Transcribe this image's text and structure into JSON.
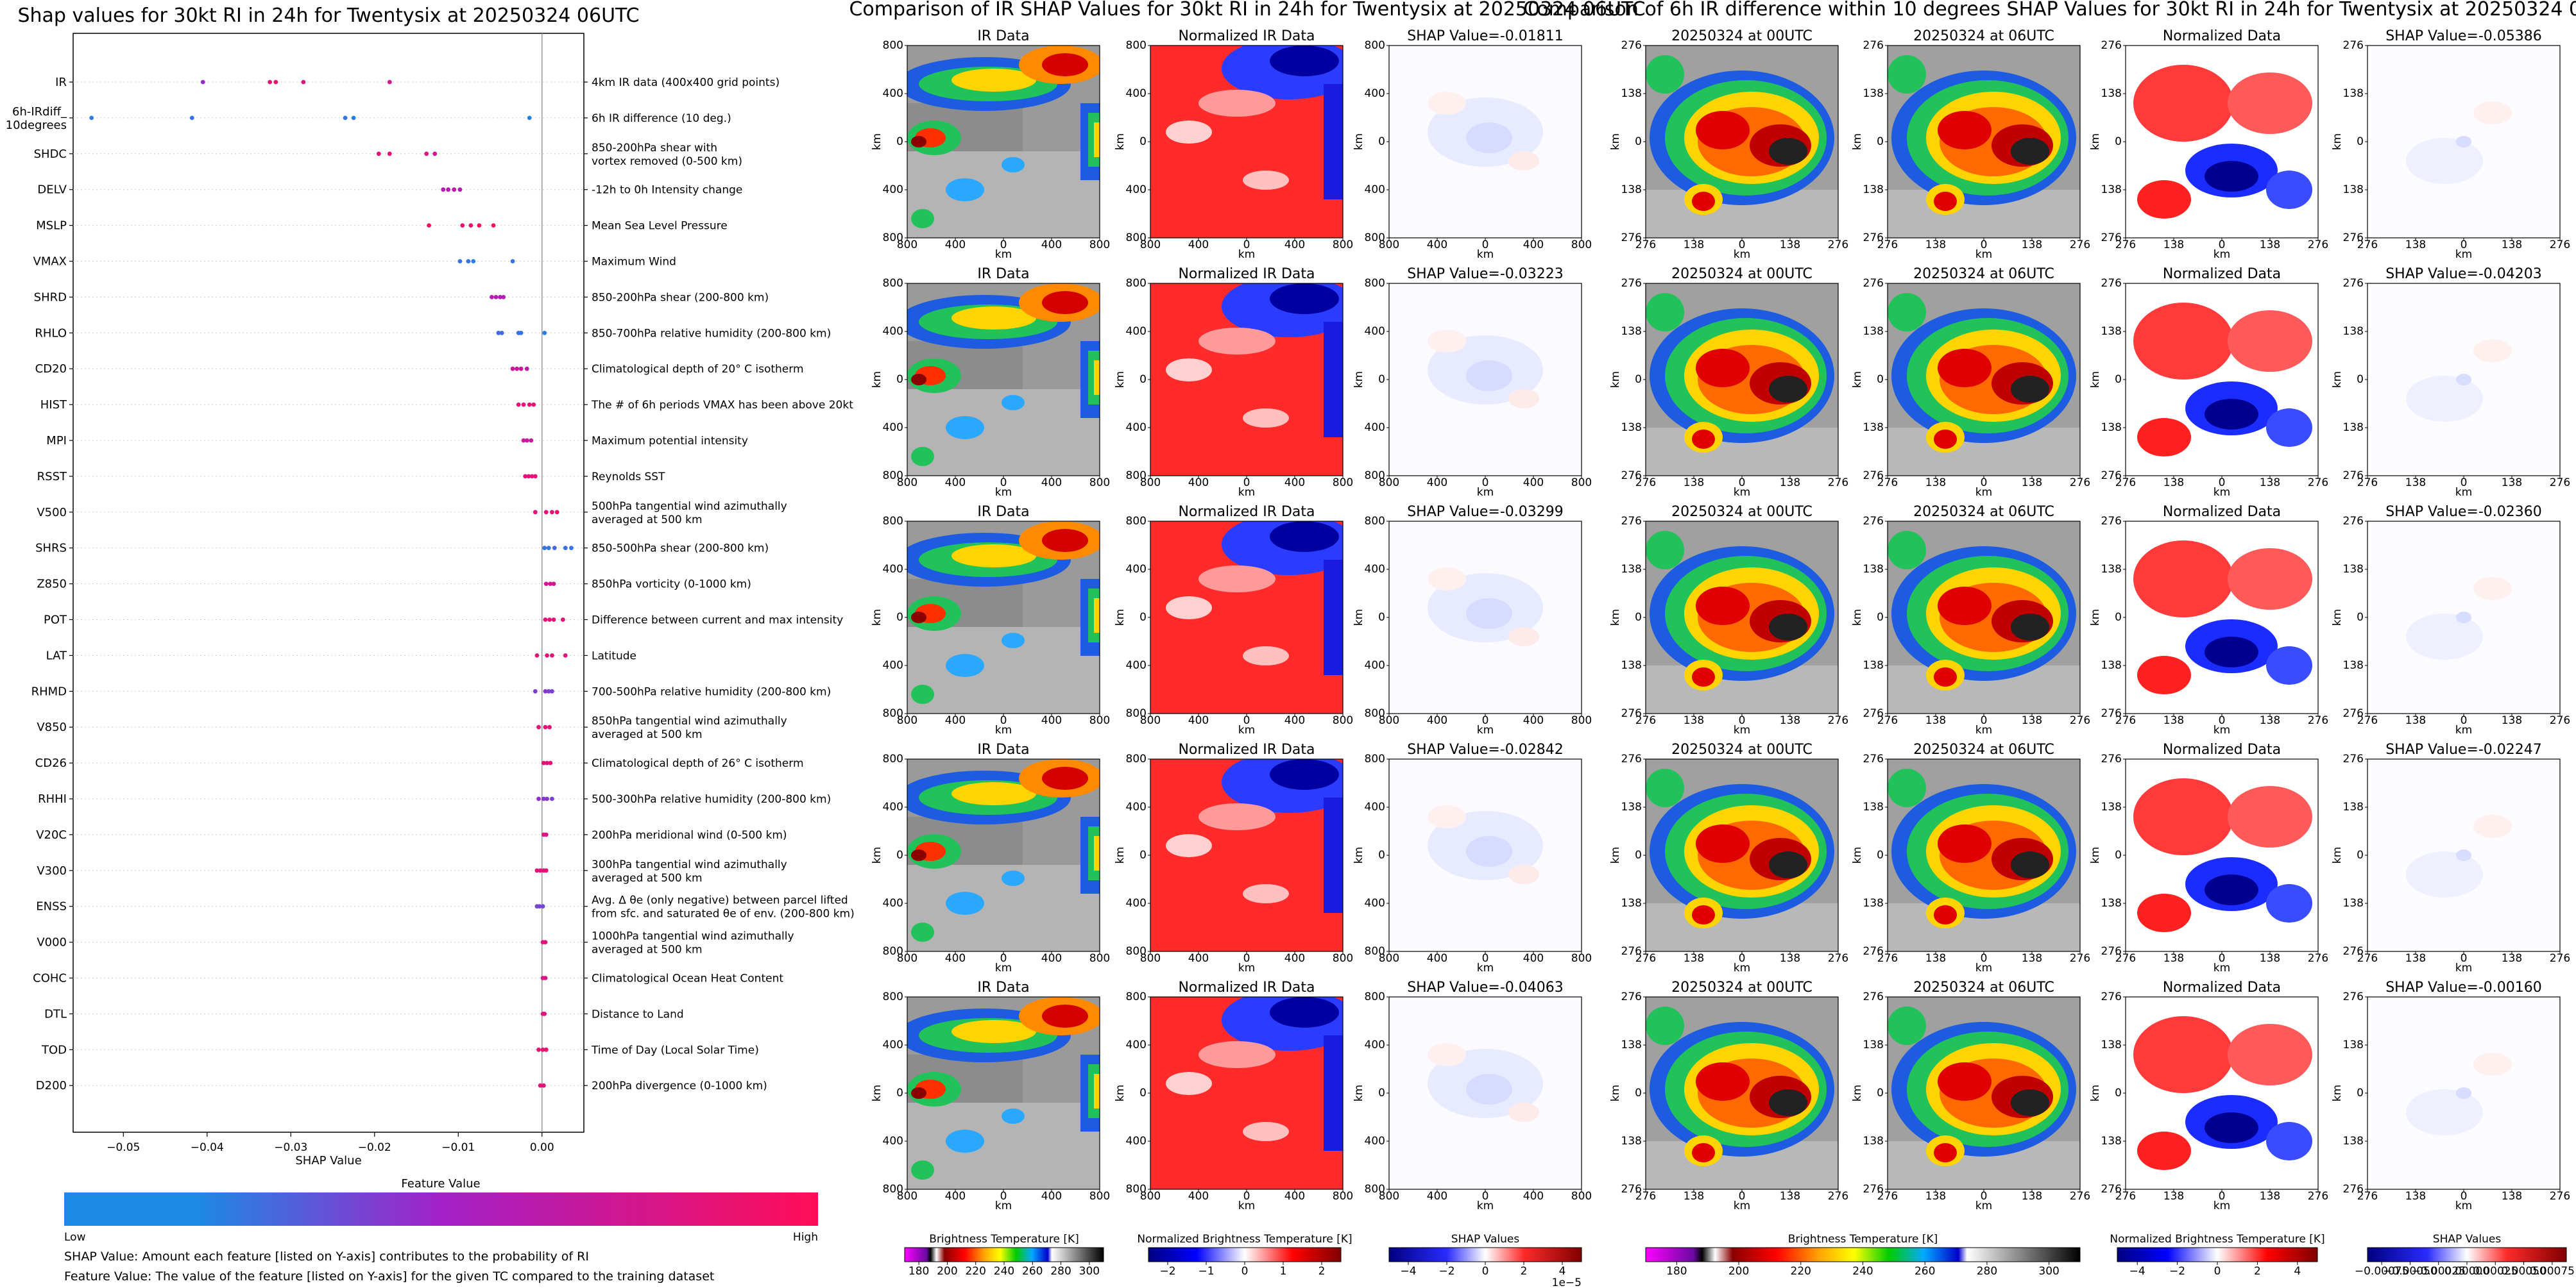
{
  "figure": {
    "panel1_title": "Shap values for 30kt RI in 24h for Twentysix at 20250324 06UTC",
    "panel2_title": "Comparison of IR SHAP Values for 30kt RI in 24h for Twentysix at 20250324 06UTC",
    "panel3_title": "Comparison of 6h IR difference within 10 degrees SHAP Values for 30kt RI in 24h for Twentysix at 20250324 06UTC"
  },
  "chart_data": [
    {
      "type": "scatter",
      "title": "Shap values for 30kt RI in 24h for Twentysix at 20250324 06UTC",
      "xlabel": "SHAP Value",
      "xlim": [
        -0.056,
        0.005
      ],
      "x_ticks": [
        "−0.05",
        "−0.04",
        "−0.03",
        "−0.02",
        "−0.01",
        "0.00"
      ],
      "x_tick_values": [
        -0.05,
        -0.04,
        -0.03,
        -0.02,
        -0.01,
        0.0
      ],
      "colorbar": {
        "label": "Feature Value",
        "low": "Low",
        "high": "High",
        "low_color": "#1e88e5",
        "high_color": "#ff0d57"
      },
      "features": [
        {
          "name": "IR",
          "desc": "4km IR data (400x400 grid points)",
          "points": [
            [
              -0.0405,
              0.45
            ],
            [
              -0.0325,
              0.85
            ],
            [
              -0.0318,
              0.9
            ],
            [
              -0.0285,
              0.8
            ],
            [
              -0.0182,
              0.75
            ]
          ]
        },
        {
          "name": "6h-IRdiff_\n10degrees",
          "desc": "6h IR difference (10 deg.)",
          "points": [
            [
              -0.0538,
              0.05
            ],
            [
              -0.0418,
              0.1
            ],
            [
              -0.0235,
              0.1
            ],
            [
              -0.0225,
              0.05
            ],
            [
              -0.0015,
              0.05
            ]
          ]
        },
        {
          "name": "SHDC",
          "desc": "850-200hPa shear with\nvortex removed (0-500 km)",
          "points": [
            [
              -0.0195,
              0.85
            ],
            [
              -0.0182,
              0.9
            ],
            [
              -0.0138,
              0.8
            ],
            [
              -0.0128,
              0.75
            ]
          ]
        },
        {
          "name": "DELV",
          "desc": "-12h to 0h Intensity change",
          "points": [
            [
              -0.0118,
              0.6
            ],
            [
              -0.0112,
              0.6
            ],
            [
              -0.0105,
              0.65
            ],
            [
              -0.0098,
              0.6
            ]
          ]
        },
        {
          "name": "MSLP",
          "desc": "Mean Sea Level Pressure",
          "points": [
            [
              -0.0135,
              0.95
            ],
            [
              -0.0095,
              0.9
            ],
            [
              -0.0085,
              0.9
            ],
            [
              -0.0075,
              0.95
            ],
            [
              -0.0058,
              0.95
            ]
          ]
        },
        {
          "name": "VMAX",
          "desc": "Maximum Wind",
          "points": [
            [
              -0.0098,
              0.1
            ],
            [
              -0.0088,
              0.1
            ],
            [
              -0.0082,
              0.05
            ],
            [
              -0.0035,
              0.1
            ]
          ]
        },
        {
          "name": "SHRD",
          "desc": "850-200hPa shear (200-800 km)",
          "points": [
            [
              -0.006,
              0.6
            ],
            [
              -0.0055,
              0.6
            ],
            [
              -0.005,
              0.6
            ],
            [
              -0.0046,
              0.6
            ]
          ]
        },
        {
          "name": "RHLO",
          "desc": "850-700hPa relative humidity (200-800 km)",
          "points": [
            [
              -0.0052,
              0.15
            ],
            [
              -0.0048,
              0.15
            ],
            [
              -0.0028,
              0.1
            ],
            [
              -0.0025,
              0.1
            ],
            [
              0.0003,
              0.05
            ]
          ]
        },
        {
          "name": "CD20",
          "desc": "Climatological depth of 20° C isotherm",
          "points": [
            [
              -0.0035,
              0.7
            ],
            [
              -0.003,
              0.7
            ],
            [
              -0.0025,
              0.7
            ],
            [
              -0.0018,
              0.65
            ]
          ]
        },
        {
          "name": "HIST",
          "desc": "The # of 6h periods VMAX has been above 20kt",
          "points": [
            [
              -0.0028,
              0.85
            ],
            [
              -0.0022,
              0.85
            ],
            [
              -0.0015,
              0.85
            ],
            [
              -0.001,
              0.85
            ]
          ]
        },
        {
          "name": "MPI",
          "desc": "Maximum potential intensity",
          "points": [
            [
              -0.0022,
              0.7
            ],
            [
              -0.0018,
              0.7
            ],
            [
              -0.0013,
              0.7
            ]
          ]
        },
        {
          "name": "RSST",
          "desc": "Reynolds SST",
          "points": [
            [
              -0.002,
              0.85
            ],
            [
              -0.0016,
              0.85
            ],
            [
              -0.0012,
              0.85
            ],
            [
              -0.0008,
              0.85
            ]
          ]
        },
        {
          "name": "V500",
          "desc": "500hPa tangential wind azimuthally\naveraged at 500 km",
          "points": [
            [
              -0.0008,
              0.85
            ],
            [
              0.0005,
              0.85
            ],
            [
              0.0012,
              0.85
            ],
            [
              0.0018,
              0.9
            ]
          ]
        },
        {
          "name": "SHRS",
          "desc": "850-500hPa shear (200-800 km)",
          "points": [
            [
              0.0003,
              0.1
            ],
            [
              0.0008,
              0.1
            ],
            [
              0.0015,
              0.15
            ],
            [
              0.0028,
              0.1
            ],
            [
              0.0035,
              0.1
            ]
          ]
        },
        {
          "name": "Z850",
          "desc": "850hPa vorticity (0-1000 km)",
          "points": [
            [
              0.0005,
              0.75
            ],
            [
              0.001,
              0.75
            ],
            [
              0.0014,
              0.75
            ]
          ]
        },
        {
          "name": "POT",
          "desc": "Difference between current and max intensity",
          "points": [
            [
              0.0004,
              0.85
            ],
            [
              0.0009,
              0.85
            ],
            [
              0.0014,
              0.85
            ],
            [
              0.0025,
              0.85
            ]
          ]
        },
        {
          "name": "LAT",
          "desc": "Latitude",
          "points": [
            [
              -0.0006,
              0.85
            ],
            [
              0.0006,
              0.85
            ],
            [
              0.0012,
              0.85
            ],
            [
              0.0028,
              0.85
            ]
          ]
        },
        {
          "name": "RHMD",
          "desc": "700-500hPa relative humidity (200-800 km)",
          "points": [
            [
              -0.0008,
              0.35
            ],
            [
              0.0004,
              0.4
            ],
            [
              0.0008,
              0.35
            ],
            [
              0.0012,
              0.35
            ]
          ]
        },
        {
          "name": "V850",
          "desc": "850hPa tangential wind azimuthally\naveraged at 500 km",
          "points": [
            [
              -0.0004,
              0.85
            ],
            [
              0.0004,
              0.85
            ],
            [
              0.0009,
              0.85
            ]
          ]
        },
        {
          "name": "CD26",
          "desc": "Climatological depth of 26° C isotherm",
          "points": [
            [
              0.0002,
              0.85
            ],
            [
              0.0006,
              0.85
            ],
            [
              0.001,
              0.85
            ]
          ]
        },
        {
          "name": "RHHI",
          "desc": "500-300hPa relative humidity (200-800 km)",
          "points": [
            [
              -0.0004,
              0.45
            ],
            [
              0.0002,
              0.4
            ],
            [
              0.0006,
              0.4
            ],
            [
              0.0012,
              0.35
            ]
          ]
        },
        {
          "name": "V20C",
          "desc": "200hPa meridional wind (0-500 km)",
          "points": [
            [
              0.0002,
              0.8
            ],
            [
              0.0005,
              0.8
            ]
          ]
        },
        {
          "name": "V300",
          "desc": "300hPa tangential wind azimuthally\naveraged at 500 km",
          "points": [
            [
              -0.0006,
              0.85
            ],
            [
              -0.0002,
              0.85
            ],
            [
              0.0002,
              0.85
            ],
            [
              0.0005,
              0.85
            ]
          ]
        },
        {
          "name": "ENSS",
          "desc": "Avg. Δ θe (only negative) between parcel lifted\nfrom sfc. and saturated θe of env. (200-800 km)",
          "points": [
            [
              -0.0006,
              0.3
            ],
            [
              -0.0003,
              0.35
            ],
            [
              0.0001,
              0.3
            ]
          ]
        },
        {
          "name": "V000",
          "desc": "1000hPa tangential wind azimuthally\naveraged at 500 km",
          "points": [
            [
              0.0001,
              0.85
            ],
            [
              0.0004,
              0.85
            ]
          ]
        },
        {
          "name": "COHC",
          "desc": "Climatological Ocean Heat Content",
          "points": [
            [
              0.0001,
              0.8
            ],
            [
              0.0004,
              0.8
            ]
          ]
        },
        {
          "name": "DTL",
          "desc": "Distance to Land",
          "points": [
            [
              0.0001,
              0.85
            ],
            [
              0.0003,
              0.85
            ]
          ]
        },
        {
          "name": "TOD",
          "desc": "Time of Day (Local Solar Time)",
          "points": [
            [
              -0.0004,
              0.9
            ],
            [
              0.0001,
              0.9
            ],
            [
              0.0005,
              0.9
            ]
          ]
        },
        {
          "name": "D200",
          "desc": "200hPa divergence (0-1000 km)",
          "points": [
            [
              -0.0002,
              0.85
            ],
            [
              0.0002,
              0.85
            ]
          ]
        }
      ],
      "notes": [
        "SHAP Value: Amount each feature [listed on Y-axis] contributes to the probability of RI",
        "Feature Value: The value of the feature [listed on Y-axis] for the given TC compared to the training dataset"
      ]
    },
    {
      "type": "heatmap",
      "title": "Comparison of IR SHAP Values for 30kt RI in 24h for Twentysix at 20250324 06UTC",
      "column_titles": [
        "IR Data",
        "Normalized IR Data"
      ],
      "shap_titles": [
        "SHAP Value=-0.01811",
        "SHAP Value=-0.03223",
        "SHAP Value=-0.03299",
        "SHAP Value=-0.02842",
        "SHAP Value=-0.04063"
      ],
      "axis_label": "km",
      "axis_ticks": [
        "800",
        "400",
        "0",
        "400",
        "800"
      ],
      "colorbars": [
        {
          "label": "Brightness Temperature [K]",
          "ticks": [
            "180",
            "200",
            "220",
            "240",
            "260",
            "280",
            "300"
          ]
        },
        {
          "label": "Normalized Brightness Temperature [K]",
          "ticks": [
            "−2",
            "−1",
            "0",
            "1",
            "2"
          ]
        },
        {
          "label": "SHAP Values",
          "ticks": [
            "−4",
            "−2",
            "0",
            "2",
            "4"
          ],
          "offset": "1e−5"
        }
      ]
    },
    {
      "type": "heatmap",
      "title": "Comparison of 6h IR difference within 10 degrees SHAP Values for 30kt RI in 24h for Twentysix at 20250324 06UTC",
      "column_titles": [
        "20250324 at 00UTC",
        "20250324 at 06UTC",
        "Normalized Data"
      ],
      "shap_titles": [
        "SHAP Value=-0.05386",
        "SHAP Value=-0.04203",
        "SHAP Value=-0.02360",
        "SHAP Value=-0.02247",
        "SHAP Value=-0.00160"
      ],
      "axis_label": "km",
      "axis_ticks": [
        "276",
        "138",
        "0",
        "138",
        "276"
      ],
      "colorbars": [
        {
          "label": "Brightness Temperature [K]",
          "ticks": [
            "180",
            "200",
            "220",
            "240",
            "260",
            "280",
            "300"
          ]
        },
        {
          "label": "Normalized Brightness Temperature [K]",
          "ticks": [
            "−4",
            "−2",
            "0",
            "2",
            "4"
          ]
        },
        {
          "label": "SHAP Values",
          "ticks": [
            "−0.00075",
            "−0.00050",
            "−0.00025",
            "0.00000",
            "0.00025",
            "0.00050",
            "0.00075"
          ]
        }
      ]
    }
  ]
}
